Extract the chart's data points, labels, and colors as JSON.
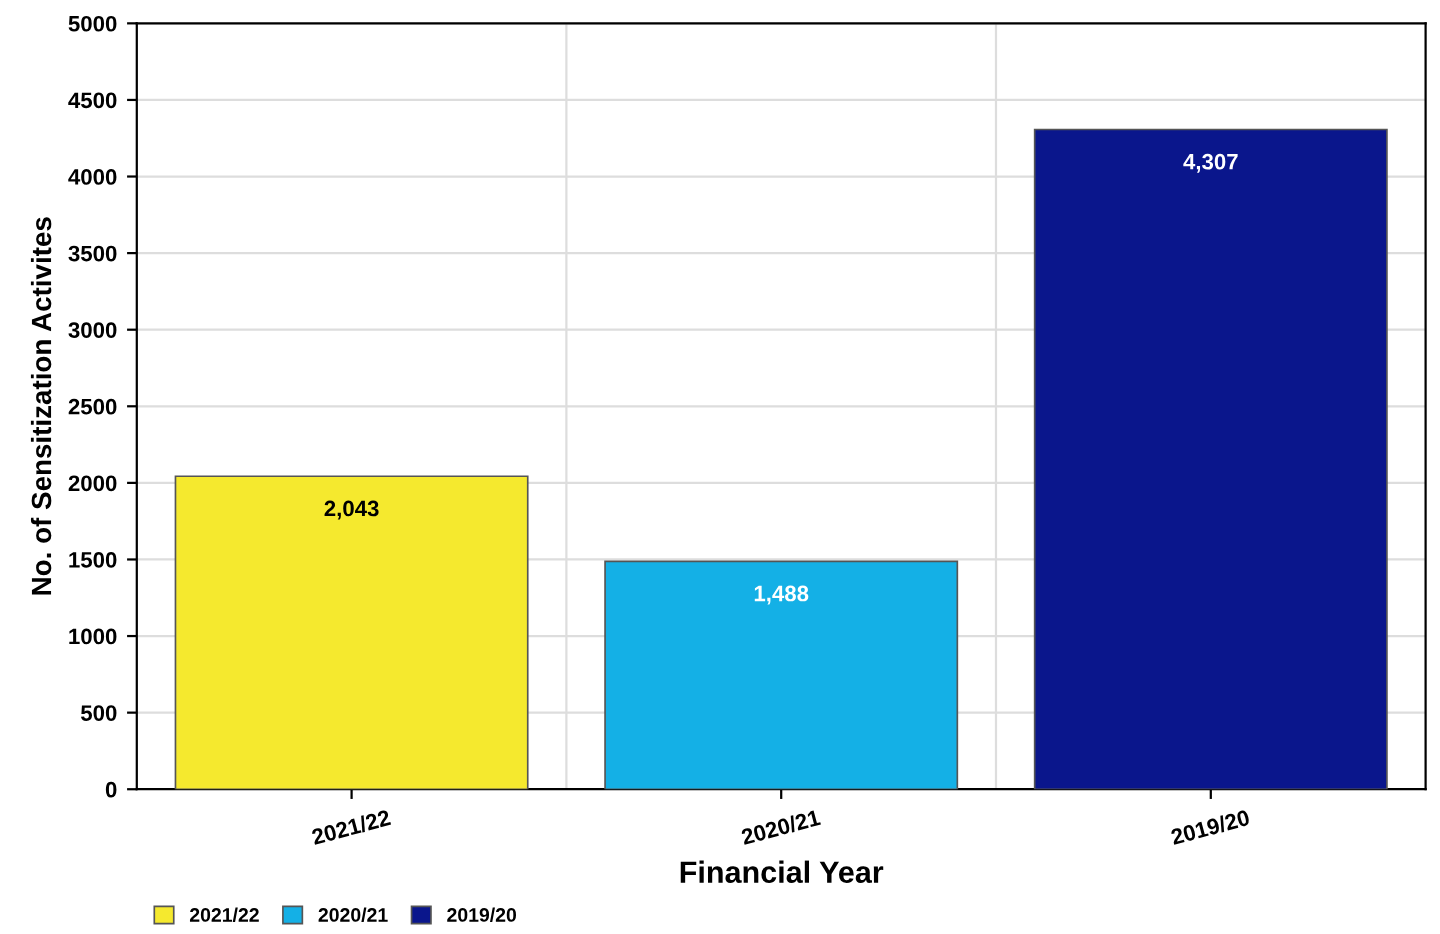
{
  "chart_data": {
    "type": "bar",
    "xlabel": "Financial Year",
    "ylabel": "No. of Sensitization Activites",
    "categories": [
      "2021/22",
      "2020/21",
      "2019/20"
    ],
    "series": [
      {
        "name": "2021/22",
        "color": "#f5e92e",
        "values": [
          2043,
          null,
          null
        ],
        "value_labels": [
          "2,043",
          null,
          null
        ]
      },
      {
        "name": "2020/21",
        "color": "#14b0e6",
        "values": [
          null,
          1488,
          null
        ],
        "value_labels": [
          null,
          "1,488",
          null
        ]
      },
      {
        "name": "2019/20",
        "color": "#0a168c",
        "values": [
          null,
          null,
          4307
        ],
        "value_labels": [
          null,
          null,
          "4,307"
        ]
      }
    ],
    "ylim": [
      0,
      5000
    ],
    "yticks": [
      0,
      500,
      1000,
      1500,
      2000,
      2500,
      3000,
      3500,
      4000,
      4500,
      5000
    ],
    "grid": true,
    "legend": "bottom left"
  }
}
